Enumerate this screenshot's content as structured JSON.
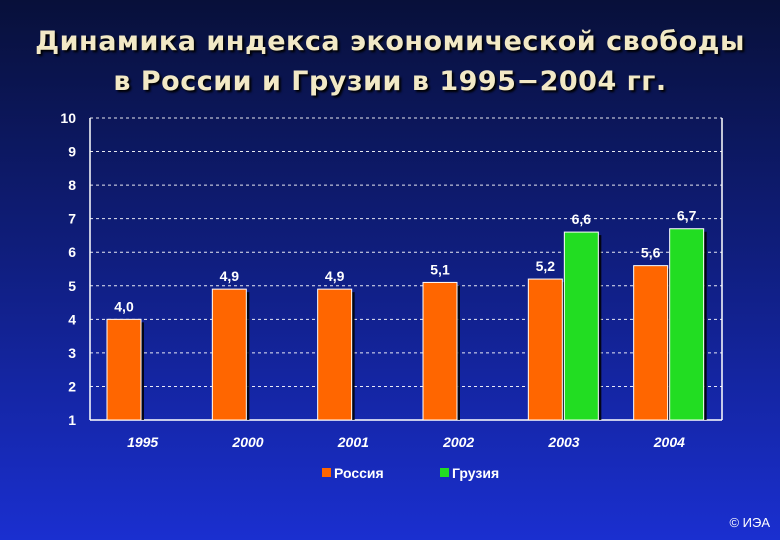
{
  "chart_data": {
    "type": "bar",
    "title_line1": "Динамика индекса экономической свободы",
    "title_line2": "в России и Грузии в 1995−2004 гг.",
    "categories": [
      "1995",
      "2000",
      "2001",
      "2002",
      "2003",
      "2004"
    ],
    "series": [
      {
        "name": "Россия",
        "color": "#ff6600",
        "values": [
          4.0,
          4.9,
          4.9,
          5.1,
          5.2,
          5.6
        ],
        "labels": [
          "4,0",
          "4,9",
          "4,9",
          "5,1",
          "5,2",
          "5,6"
        ]
      },
      {
        "name": "Грузия",
        "color": "#22dd22",
        "values": [
          null,
          null,
          null,
          null,
          6.6,
          6.7
        ],
        "labels": [
          null,
          null,
          null,
          null,
          "6,6",
          "6,7"
        ]
      }
    ],
    "ylim": [
      1,
      10
    ],
    "yticks": [
      "1",
      "2",
      "3",
      "4",
      "5",
      "6",
      "7",
      "8",
      "9",
      "10"
    ],
    "grid": true,
    "legend": "bottom-center"
  },
  "footer": {
    "copyright": "© ИЭА"
  }
}
